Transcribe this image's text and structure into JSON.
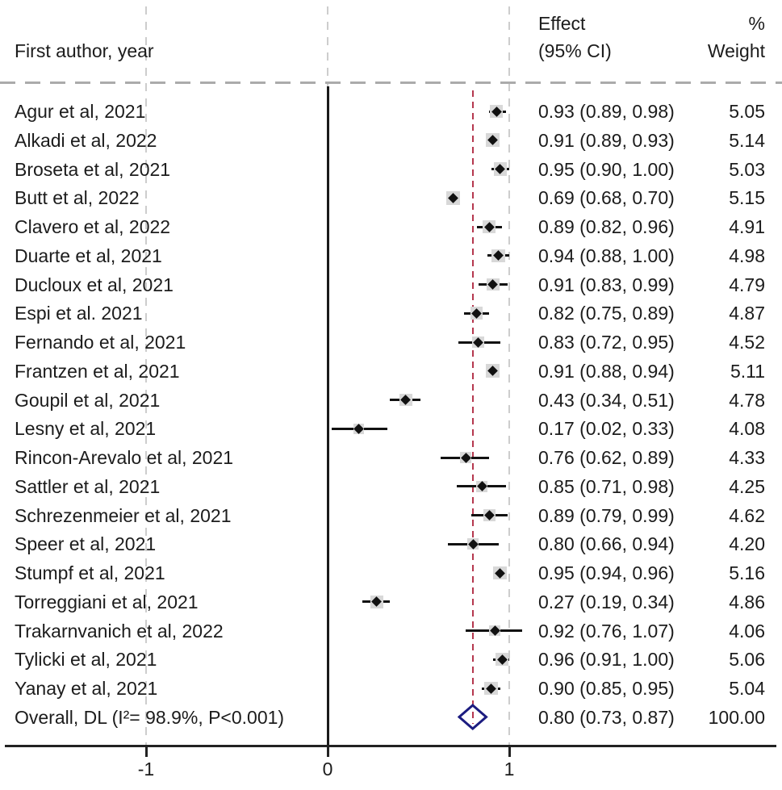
{
  "header": {
    "col_study": "First author, year",
    "col_effect_line1": "Effect",
    "col_effect_line2": "(95% CI)",
    "col_weight_line1": "%",
    "col_weight_line2": "Weight"
  },
  "axis": {
    "ticks": [
      -1,
      0,
      1
    ],
    "tick_labels": [
      "-1",
      "0",
      "1"
    ]
  },
  "colors": {
    "accent_red": "#b5374e",
    "diamond_navy": "#1c1c80",
    "box_gray": "#d8d8d8",
    "line_black": "#1a1a1a",
    "grid_gray": "#cdcdcd"
  },
  "chart_data": {
    "type": "forest",
    "xlabel": "",
    "null_line_x": 0,
    "overall_effect_line_x": 0.8,
    "xlim": [
      -1.77,
      2.47
    ],
    "grid": "vertical-dashed",
    "studies": [
      {
        "label": "Agur et al, 2021",
        "effect": 0.93,
        "ci_low": 0.89,
        "ci_high": 0.98,
        "weight": 5.05,
        "ci_text": "0.93 (0.89, 0.98)",
        "weight_text": "5.05"
      },
      {
        "label": "Alkadi et al, 2022",
        "effect": 0.91,
        "ci_low": 0.89,
        "ci_high": 0.93,
        "weight": 5.14,
        "ci_text": "0.91 (0.89, 0.93)",
        "weight_text": "5.14"
      },
      {
        "label": "Broseta et al, 2021",
        "effect": 0.95,
        "ci_low": 0.9,
        "ci_high": 1.0,
        "weight": 5.03,
        "ci_text": "0.95 (0.90, 1.00)",
        "weight_text": "5.03"
      },
      {
        "label": "Butt et al, 2022",
        "effect": 0.69,
        "ci_low": 0.68,
        "ci_high": 0.7,
        "weight": 5.15,
        "ci_text": "0.69 (0.68, 0.70)",
        "weight_text": "5.15"
      },
      {
        "label": "Clavero et al, 2022",
        "effect": 0.89,
        "ci_low": 0.82,
        "ci_high": 0.96,
        "weight": 4.91,
        "ci_text": "0.89 (0.82, 0.96)",
        "weight_text": "4.91"
      },
      {
        "label": "Duarte et al, 2021",
        "effect": 0.94,
        "ci_low": 0.88,
        "ci_high": 1.0,
        "weight": 4.98,
        "ci_text": "0.94 (0.88, 1.00)",
        "weight_text": "4.98"
      },
      {
        "label": "Ducloux et al, 2021",
        "effect": 0.91,
        "ci_low": 0.83,
        "ci_high": 0.99,
        "weight": 4.79,
        "ci_text": "0.91 (0.83, 0.99)",
        "weight_text": "4.79"
      },
      {
        "label": "Espi et al. 2021",
        "effect": 0.82,
        "ci_low": 0.75,
        "ci_high": 0.89,
        "weight": 4.87,
        "ci_text": "0.82 (0.75, 0.89)",
        "weight_text": "4.87"
      },
      {
        "label": "Fernando et al, 2021",
        "effect": 0.83,
        "ci_low": 0.72,
        "ci_high": 0.95,
        "weight": 4.52,
        "ci_text": "0.83 (0.72, 0.95)",
        "weight_text": "4.52"
      },
      {
        "label": "Frantzen et al, 2021",
        "effect": 0.91,
        "ci_low": 0.88,
        "ci_high": 0.94,
        "weight": 5.11,
        "ci_text": "0.91 (0.88, 0.94)",
        "weight_text": "5.11"
      },
      {
        "label": "Goupil et al, 2021",
        "effect": 0.43,
        "ci_low": 0.34,
        "ci_high": 0.51,
        "weight": 4.78,
        "ci_text": "0.43 (0.34, 0.51)",
        "weight_text": "4.78"
      },
      {
        "label": "Lesny et al, 2021",
        "effect": 0.17,
        "ci_low": 0.02,
        "ci_high": 0.33,
        "weight": 4.08,
        "ci_text": "0.17 (0.02, 0.33)",
        "weight_text": "4.08"
      },
      {
        "label": "Rincon-Arevalo et al, 2021",
        "effect": 0.76,
        "ci_low": 0.62,
        "ci_high": 0.89,
        "weight": 4.33,
        "ci_text": "0.76 (0.62, 0.89)",
        "weight_text": "4.33"
      },
      {
        "label": "Sattler et al, 2021",
        "effect": 0.85,
        "ci_low": 0.71,
        "ci_high": 0.98,
        "weight": 4.25,
        "ci_text": "0.85 (0.71, 0.98)",
        "weight_text": "4.25"
      },
      {
        "label": "Schrezenmeier et al, 2021",
        "effect": 0.89,
        "ci_low": 0.79,
        "ci_high": 0.99,
        "weight": 4.62,
        "ci_text": "0.89 (0.79, 0.99)",
        "weight_text": "4.62"
      },
      {
        "label": "Speer et al, 2021",
        "effect": 0.8,
        "ci_low": 0.66,
        "ci_high": 0.94,
        "weight": 4.2,
        "ci_text": "0.80 (0.66, 0.94)",
        "weight_text": "4.20"
      },
      {
        "label": "Stumpf et al, 2021",
        "effect": 0.95,
        "ci_low": 0.94,
        "ci_high": 0.96,
        "weight": 5.16,
        "ci_text": "0.95 (0.94, 0.96)",
        "weight_text": "5.16"
      },
      {
        "label": "Torreggiani et al, 2021",
        "effect": 0.27,
        "ci_low": 0.19,
        "ci_high": 0.34,
        "weight": 4.86,
        "ci_text": "0.27 (0.19, 0.34)",
        "weight_text": "4.86"
      },
      {
        "label": "Trakarnvanich et al, 2022",
        "effect": 0.92,
        "ci_low": 0.76,
        "ci_high": 1.07,
        "weight": 4.06,
        "ci_text": "0.92 (0.76, 1.07)",
        "weight_text": "4.06"
      },
      {
        "label": "Tylicki et al, 2021",
        "effect": 0.96,
        "ci_low": 0.91,
        "ci_high": 1.0,
        "weight": 5.06,
        "ci_text": "0.96 (0.91, 1.00)",
        "weight_text": "5.06"
      },
      {
        "label": "Yanay et al, 2021",
        "effect": 0.9,
        "ci_low": 0.85,
        "ci_high": 0.95,
        "weight": 5.04,
        "ci_text": "0.90 (0.85, 0.95)",
        "weight_text": "5.04"
      }
    ],
    "overall": {
      "label": "Overall, DL (I²= 98.9%, P<0.001)",
      "effect": 0.8,
      "ci_low": 0.73,
      "ci_high": 0.87,
      "weight": 100.0,
      "ci_text": "0.80 (0.73, 0.87)",
      "weight_text": "100.00"
    }
  }
}
